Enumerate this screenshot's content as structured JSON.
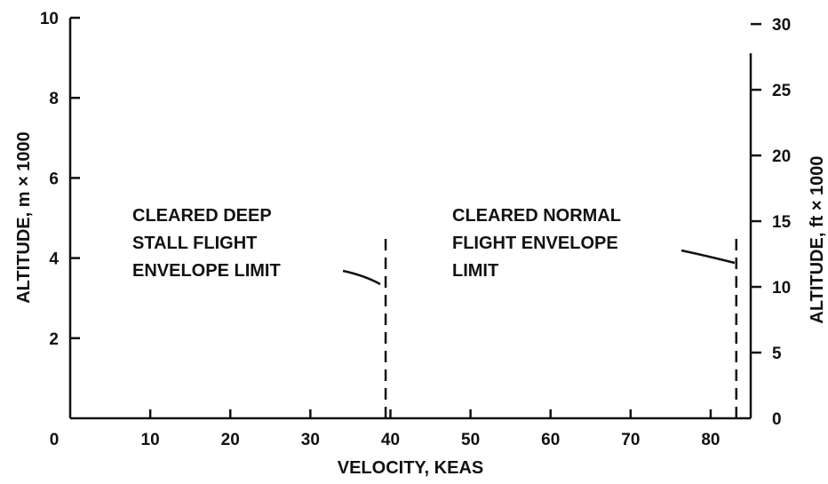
{
  "chart_data": {
    "type": "line",
    "xlabel": "VELOCITY, KEAS",
    "ylabel_left": "ALTITUDE, m × 1000",
    "ylabel_right": "ALTITUDE, ft × 1000",
    "xlim": [
      0,
      85
    ],
    "ylim_left": [
      0,
      10
    ],
    "ylim_right": [
      0,
      30.48
    ],
    "x_ticks": [
      0,
      10,
      20,
      30,
      40,
      50,
      60,
      70,
      80
    ],
    "x_tick_labels": [
      "0",
      "10",
      "20",
      "30",
      "40",
      "50",
      "60",
      "70",
      "80"
    ],
    "y_left_ticks": [
      0,
      2,
      4,
      6,
      8,
      10
    ],
    "y_left_tick_labels": [
      "",
      "2",
      "4",
      "6",
      "8",
      "10"
    ],
    "y_right_ticks": [
      0,
      5,
      10,
      15,
      20,
      25,
      30
    ],
    "y_right_tick_labels": [
      "0",
      "5",
      "10",
      "15",
      "20",
      "25",
      "30"
    ],
    "grid": false,
    "series": [
      {
        "x": [
          39.4,
          39.4
        ],
        "y": [
          0,
          4.6
        ],
        "style": "dashed",
        "color": "#111111"
      },
      {
        "x": [
          83.2,
          83.2
        ],
        "y": [
          0,
          4.6
        ],
        "style": "dashed",
        "color": "#111111"
      }
    ],
    "annotations": [
      {
        "lines": [
          "CLEARED DEEP",
          "STALL FLIGHT",
          "ENVELOPE LIMIT"
        ],
        "points_to": [
          39.4,
          3.4
        ]
      },
      {
        "lines": [
          "CLEARED NORMAL",
          "FLIGHT ENVELOPE",
          "LIMIT"
        ],
        "points_to": [
          83.2,
          3.9
        ]
      }
    ]
  }
}
